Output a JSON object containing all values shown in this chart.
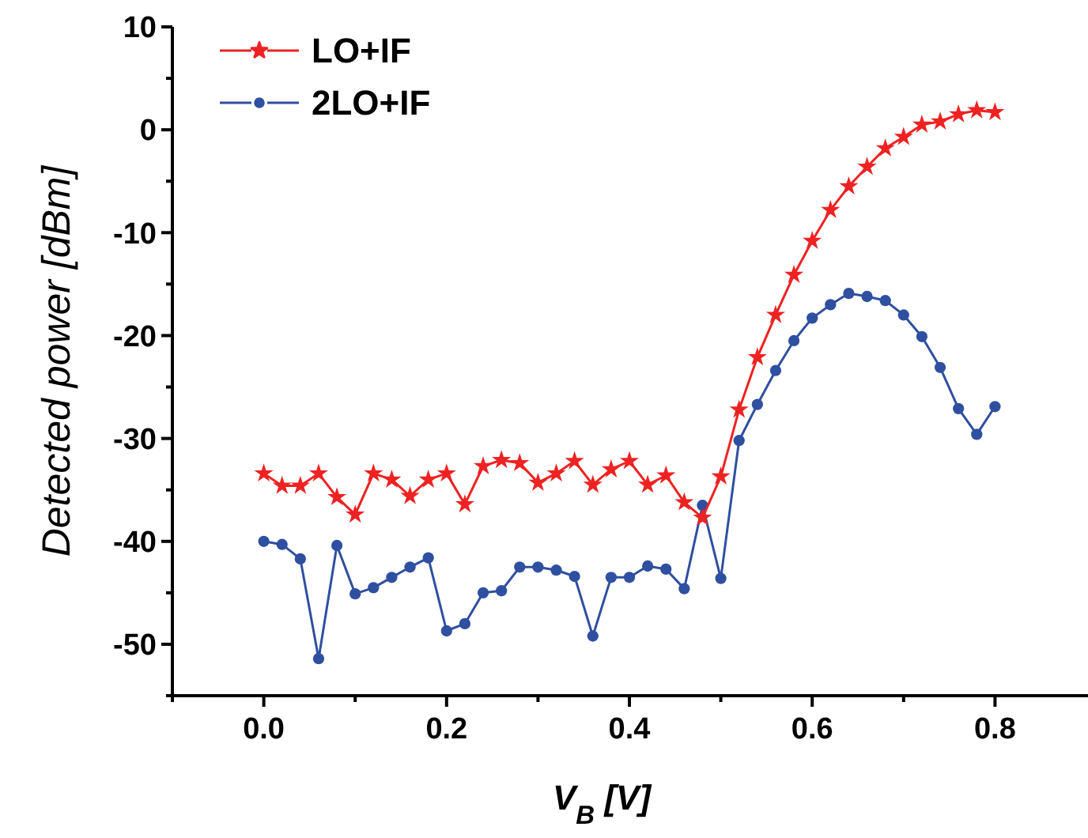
{
  "chart_data": {
    "type": "line",
    "xlabel": "V$_{B}$ [V]",
    "ylabel": "Detected power [dBm]",
    "x": [
      0,
      0.02,
      0.04,
      0.06,
      0.08,
      0.1,
      0.12,
      0.14,
      0.16,
      0.18,
      0.2,
      0.22,
      0.24,
      0.26,
      0.28,
      0.3,
      0.32,
      0.34,
      0.36,
      0.38,
      0.4,
      0.42,
      0.44,
      0.46,
      0.48,
      0.5,
      0.52,
      0.54,
      0.56,
      0.58,
      0.6,
      0.62,
      0.64,
      0.66,
      0.68,
      0.7,
      0.72,
      0.74,
      0.76,
      0.78,
      0.8
    ],
    "series": [
      {
        "name": "LO+IF",
        "color": "#ee2222",
        "marker": "star",
        "values": [
          -33.4,
          -34.6,
          -34.6,
          -33.4,
          -35.7,
          -37.4,
          -33.4,
          -34.0,
          -35.6,
          -34.0,
          -33.4,
          -36.4,
          -32.7,
          -32.1,
          -32.4,
          -34.3,
          -33.4,
          -32.2,
          -34.5,
          -33.0,
          -32.2,
          -34.5,
          -33.6,
          -36.2,
          -37.7,
          -33.7,
          -27.2,
          -22.1,
          -18.0,
          -14.1,
          -10.8,
          -7.8,
          -5.5,
          -3.6,
          -1.8,
          -0.7,
          0.5,
          0.8,
          1.5,
          1.9,
          1.7
        ]
      },
      {
        "name": "2LO+IF",
        "color": "#2f4fa0",
        "marker": "circle",
        "values": [
          -40.0,
          -40.3,
          -41.7,
          -51.4,
          -40.4,
          -45.1,
          -44.5,
          -43.5,
          -42.5,
          -41.6,
          -48.7,
          -48.0,
          -45.0,
          -44.8,
          -42.5,
          -42.5,
          -42.8,
          -43.4,
          -49.2,
          -43.5,
          -43.5,
          -42.4,
          -42.7,
          -44.6,
          -36.5,
          -43.6,
          -30.2,
          -26.7,
          -23.4,
          -20.5,
          -18.3,
          -17.0,
          -15.9,
          -16.2,
          -16.6,
          -18.0,
          -20.1,
          -23.1,
          -27.1,
          -29.6,
          -26.9
        ]
      }
    ],
    "xlim": [
      -0.1,
      0.9
    ],
    "xticks": [
      {
        "value": -0.1,
        "label": null
      },
      {
        "value": 0,
        "label": "0.0"
      },
      {
        "value": 0.1,
        "label": null
      },
      {
        "value": 0.2,
        "label": "0.2"
      },
      {
        "value": 0.3,
        "label": null
      },
      {
        "value": 0.4,
        "label": "0.4"
      },
      {
        "value": 0.5,
        "label": null
      },
      {
        "value": 0.6,
        "label": "0.6"
      },
      {
        "value": 0.7,
        "label": null
      },
      {
        "value": 0.8,
        "label": "0.8"
      }
    ],
    "ylim": [
      -55,
      10
    ],
    "yticks": [
      {
        "value": -55,
        "label": null
      },
      -50,
      {
        "value": -45,
        "label": null
      },
      -40,
      {
        "value": -35,
        "label": null
      },
      -30,
      {
        "value": -25,
        "label": null
      },
      -20,
      {
        "value": -15,
        "label": null
      },
      -10,
      {
        "value": -5,
        "label": null
      },
      0,
      {
        "value": 5,
        "label": null
      },
      10
    ],
    "legend": "top left",
    "grid": false,
    "line_style": "solid"
  }
}
